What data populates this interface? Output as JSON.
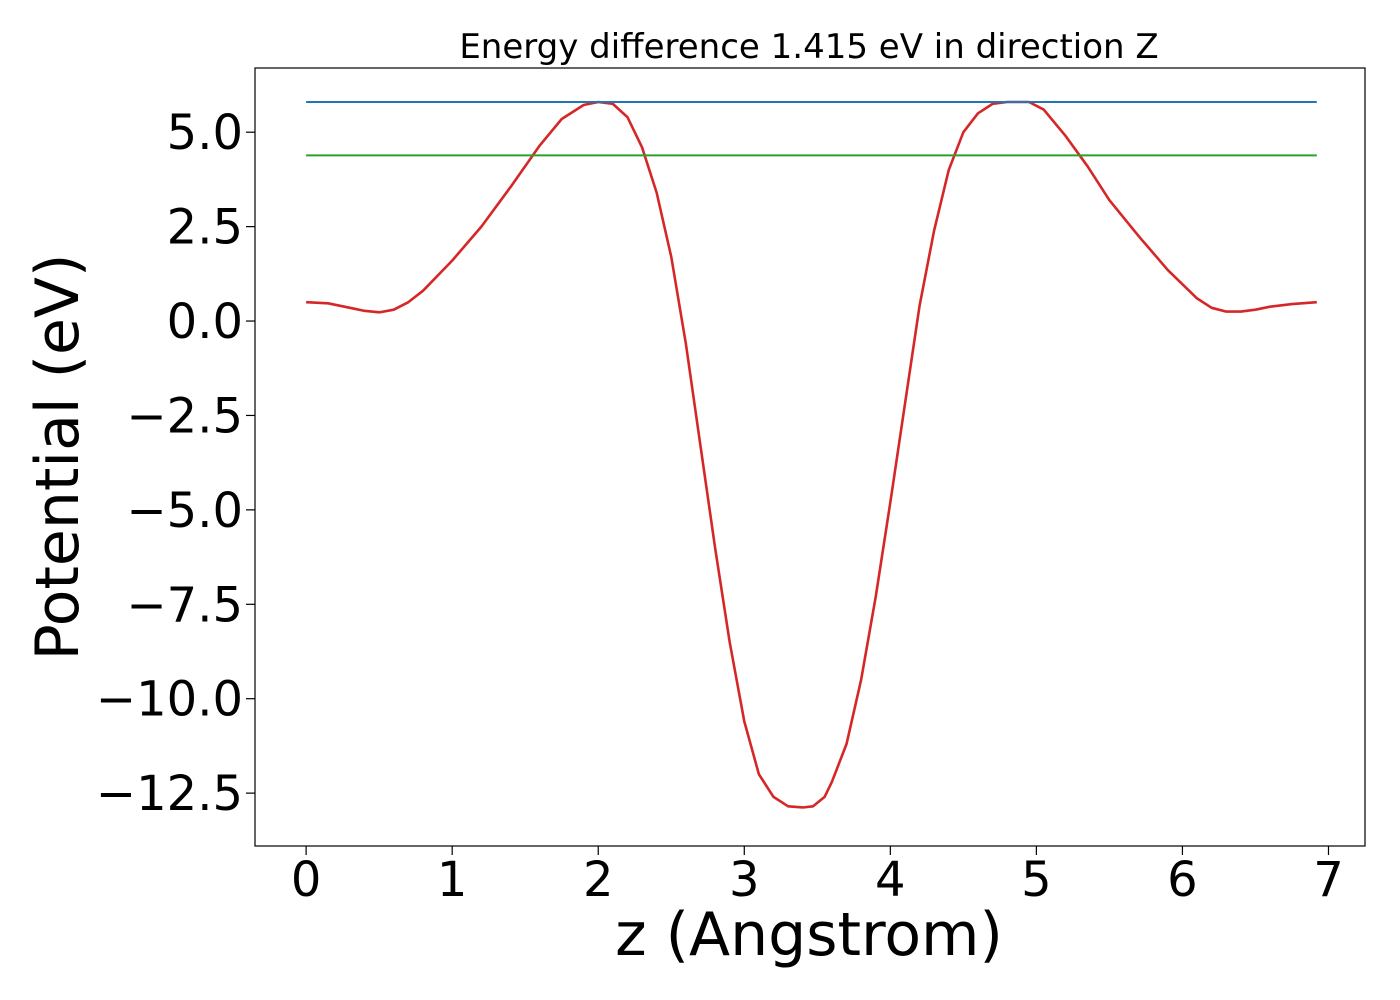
{
  "chart_data": {
    "type": "line",
    "title": "Energy difference 1.415 eV in direction Z",
    "xlabel": "z (Angstrom)",
    "ylabel": "Potential (eV)",
    "xlim": [
      -0.35,
      7.25
    ],
    "ylim": [
      -13.9,
      6.7
    ],
    "xticks": [
      0,
      1,
      2,
      3,
      4,
      5,
      6,
      7
    ],
    "xtick_labels": [
      "0",
      "1",
      "2",
      "3",
      "4",
      "5",
      "6",
      "7"
    ],
    "yticks": [
      5.0,
      2.5,
      0.0,
      -2.5,
      -5.0,
      -7.5,
      -10.0,
      -12.5
    ],
    "ytick_labels": [
      "5.0",
      "2.5",
      "0.0",
      "−2.5",
      "−5.0",
      "−7.5",
      "−10.0",
      "−12.5"
    ],
    "grid": false,
    "series": [
      {
        "color": "#d62728",
        "x": [
          0.0,
          0.15,
          0.3,
          0.4,
          0.5,
          0.6,
          0.7,
          0.8,
          1.0,
          1.2,
          1.4,
          1.6,
          1.75,
          1.9,
          2.0,
          2.1,
          2.2,
          2.3,
          2.4,
          2.5,
          2.6,
          2.7,
          2.8,
          2.9,
          3.0,
          3.1,
          3.2,
          3.3,
          3.4,
          3.47,
          3.55,
          3.6,
          3.7,
          3.8,
          3.9,
          4.0,
          4.1,
          4.2,
          4.3,
          4.4,
          4.5,
          4.6,
          4.7,
          4.8,
          4.95,
          5.05,
          5.2,
          5.35,
          5.5,
          5.7,
          5.9,
          6.1,
          6.2,
          6.3,
          6.4,
          6.5,
          6.6,
          6.75,
          6.92
        ],
        "values": [
          0.5,
          0.47,
          0.35,
          0.27,
          0.23,
          0.3,
          0.5,
          0.8,
          1.6,
          2.5,
          3.55,
          4.65,
          5.35,
          5.72,
          5.8,
          5.75,
          5.4,
          4.6,
          3.4,
          1.7,
          -0.6,
          -3.3,
          -6.0,
          -8.5,
          -10.6,
          -12.0,
          -12.6,
          -12.85,
          -12.88,
          -12.85,
          -12.6,
          -12.2,
          -11.2,
          -9.5,
          -7.3,
          -4.8,
          -2.2,
          0.4,
          2.4,
          4.0,
          5.0,
          5.5,
          5.75,
          5.8,
          5.8,
          5.6,
          4.9,
          4.1,
          3.2,
          2.25,
          1.35,
          0.6,
          0.35,
          0.25,
          0.25,
          0.3,
          0.38,
          0.45,
          0.5
        ]
      },
      {
        "color": "#1f77b4",
        "x": [
          0.0,
          6.92
        ],
        "values": [
          5.8,
          5.8
        ]
      },
      {
        "color": "#2ca02c",
        "x": [
          0.0,
          6.92
        ],
        "values": [
          4.385,
          4.385
        ]
      }
    ]
  }
}
